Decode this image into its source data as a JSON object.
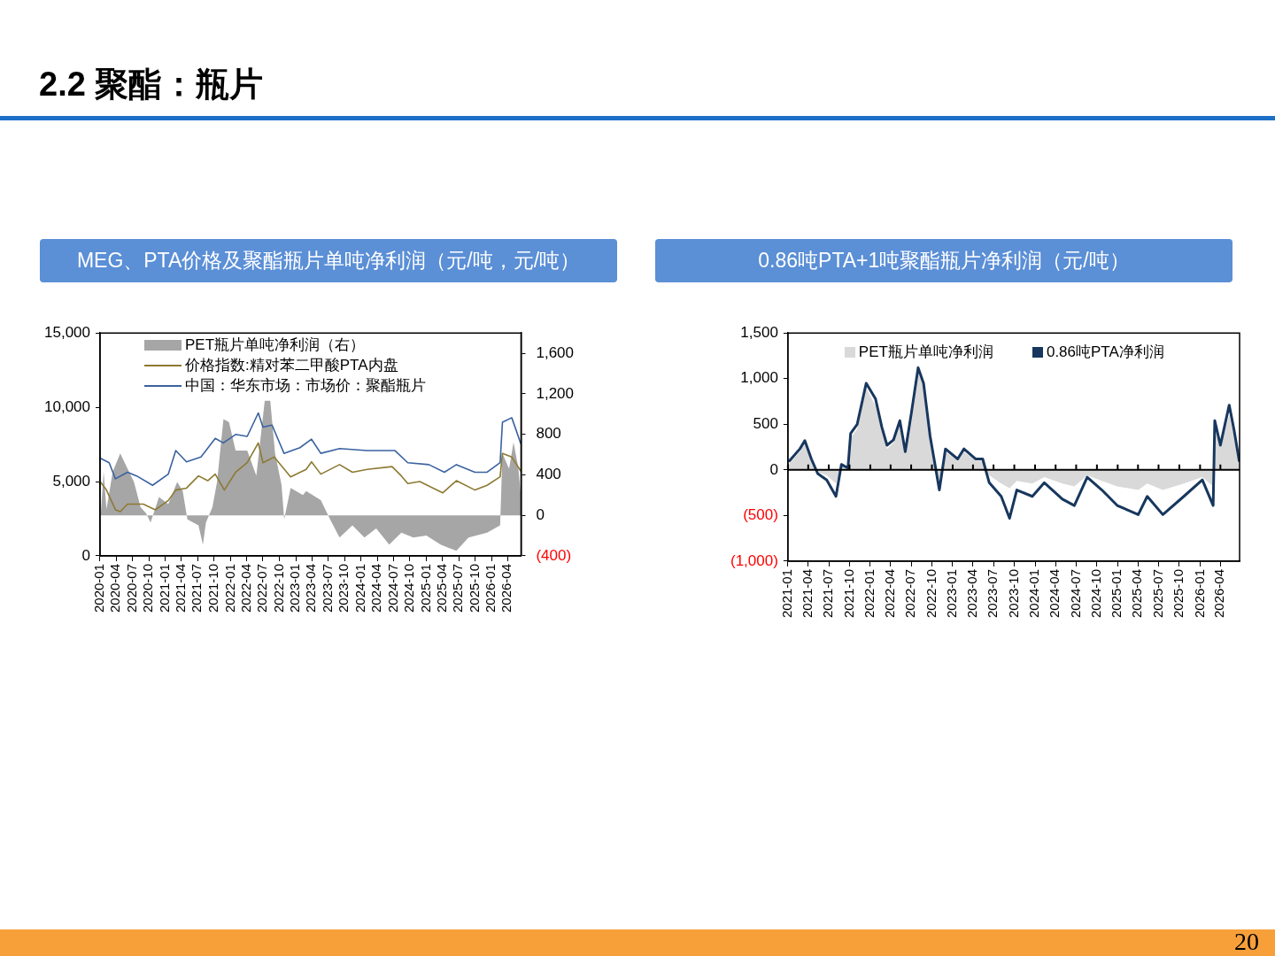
{
  "chart_data": [
    {
      "type": "other",
      "title": "2.2 聚酯：瓶片",
      "annotations": [
        "20"
      ]
    },
    {
      "type": "line",
      "title": "MEG、PTA价格及聚酯瓶片单吨净利润（元/吨，元/吨）",
      "legend": "top left",
      "marker": "none",
      "xlim": [
        "2020-01-01",
        "2026-06-15"
      ],
      "xticks": [
        "2020-01",
        "2020-04",
        "2020-07",
        "2020-10",
        "2021-01",
        "2021-04",
        "2021-07",
        "2021-10",
        "2022-01",
        "2022-04",
        "2022-07",
        "2022-10",
        "2023-01",
        "2023-04",
        "2023-07",
        "2023-10",
        "2024-01",
        "2024-04",
        "2024-07",
        "2024-10",
        "2025-01",
        "2025-04",
        "2025-07",
        "2025-10",
        "2026-01",
        "2026-04"
      ],
      "ylim": [
        0,
        15000
      ],
      "yticks": [
        {
          "value": 0,
          "label": "0"
        },
        {
          "value": 5000,
          "label": "5,000"
        },
        {
          "value": 10000,
          "label": "10,000"
        },
        {
          "value": 15000,
          "label": "15,000"
        }
      ],
      "y2lim": [
        -400,
        1800
      ],
      "y2ticks": [
        {
          "value": -400,
          "label": "(400)"
        },
        {
          "value": 0,
          "label": "0"
        },
        400,
        800,
        {
          "value": 1200,
          "label": "1,200"
        },
        {
          "value": 1600,
          "label": "1,600"
        }
      ],
      "series": [
        {
          "name": "PET瓶片单吨净利润（右）",
          "type": "area",
          "axis": "y2",
          "color": "#a6a6a6",
          "x": [
            "2020-01-01",
            "2020-01-21",
            "2020-02-06",
            "2020-03-12",
            "2020-04-23",
            "2020-06-03",
            "2020-07-09",
            "2020-08-15",
            "2020-09-15",
            "2020-10-10",
            "2020-11-26",
            "2021-01-17",
            "2021-03-08",
            "2021-04-08",
            "2021-05-04",
            "2021-07-05",
            "2021-07-30",
            "2021-08-16",
            "2021-09-21",
            "2021-10-17",
            "2021-11-22",
            "2021-12-23",
            "2022-01-29",
            "2022-04-04",
            "2022-05-25",
            "2022-07-11",
            "2022-08-11",
            "2022-09-07",
            "2022-10-13",
            "2022-10-28",
            "2022-12-03",
            "2023-02-10",
            "2023-02-28",
            "2023-05-21",
            "2023-07-12",
            "2023-09-03",
            "2023-11-14",
            "2024-01-20",
            "2024-03-26",
            "2024-06-07",
            "2024-08-14",
            "2024-10-20",
            "2025-01-01",
            "2025-03-22",
            "2025-06-18",
            "2025-08-25",
            "2025-12-07",
            "2026-02-18",
            "2026-03-03",
            "2026-04-09",
            "2026-05-04",
            "2026-05-30",
            "2026-06-14"
          ],
          "values": [
            -100,
            430,
            60,
            430,
            610,
            460,
            330,
            80,
            20,
            -70,
            180,
            110,
            330,
            240,
            -40,
            -100,
            -290,
            -70,
            80,
            330,
            950,
            920,
            640,
            640,
            390,
            1130,
            1130,
            610,
            300,
            -40,
            270,
            200,
            240,
            150,
            -40,
            -220,
            -100,
            -220,
            -130,
            -290,
            -170,
            -220,
            -200,
            -290,
            -350,
            -220,
            -170,
            -100,
            610,
            460,
            720,
            480,
            200
          ]
        },
        {
          "name": "价格指数:精对苯二甲酸PTA内盘",
          "type": "line",
          "color": "#8c7a32",
          "x": [
            "2020-01-01",
            "2020-02-06",
            "2020-03-27",
            "2020-04-23",
            "2020-06-03",
            "2020-08-30",
            "2020-11-06",
            "2021-01-17",
            "2021-02-28",
            "2021-04-29",
            "2021-07-05",
            "2021-08-26",
            "2021-10-07",
            "2021-11-27",
            "2022-01-29",
            "2022-04-04",
            "2022-06-05",
            "2022-07-01",
            "2022-09-02",
            "2022-12-03",
            "2023-02-28",
            "2023-03-30",
            "2023-05-21",
            "2023-09-03",
            "2023-11-14",
            "2024-02-05",
            "2024-06-23",
            "2024-08-14",
            "2024-09-19",
            "2024-11-25",
            "2025-04-02",
            "2025-06-18",
            "2025-09-30",
            "2025-12-07",
            "2026-02-18",
            "2026-03-03",
            "2026-04-24",
            "2026-06-14"
          ],
          "values": [
            5000,
            4430,
            3100,
            2980,
            3480,
            3480,
            3100,
            3730,
            4430,
            4560,
            5380,
            5060,
            5500,
            4430,
            5630,
            6270,
            7600,
            6270,
            6650,
            5320,
            5820,
            6330,
            5500,
            6140,
            5630,
            5820,
            6010,
            5380,
            4870,
            5000,
            4240,
            5060,
            4430,
            4750,
            5320,
            6900,
            6650,
            5700
          ]
        },
        {
          "name": "中国：华东市场：市场价：聚酯瓶片",
          "type": "line",
          "color": "#3a62a0",
          "x": [
            "2020-01-01",
            "2020-02-21",
            "2020-03-27",
            "2020-06-03",
            "2020-07-24",
            "2020-10-21",
            "2021-01-17",
            "2021-02-28",
            "2021-04-29",
            "2021-07-19",
            "2021-10-07",
            "2021-11-21",
            "2022-01-29",
            "2022-04-04",
            "2022-06-05",
            "2022-07-01",
            "2022-08-21",
            "2022-10-27",
            "2023-01-24",
            "2023-03-30",
            "2023-05-21",
            "2023-09-03",
            "2024-02-05",
            "2024-07-08",
            "2024-09-19",
            "2025-01-15",
            "2025-04-12",
            "2025-06-18",
            "2025-09-30",
            "2025-12-07",
            "2026-02-18",
            "2026-03-03",
            "2026-04-24",
            "2026-05-18",
            "2026-06-14"
          ],
          "values": [
            6580,
            6270,
            5190,
            5630,
            5380,
            4750,
            5500,
            7090,
            6330,
            6650,
            7910,
            7600,
            8170,
            8040,
            9620,
            8670,
            8800,
            6900,
            7280,
            7850,
            6900,
            7220,
            7090,
            7090,
            6270,
            6140,
            5630,
            6140,
            5630,
            5630,
            6270,
            8990,
            9300,
            8480,
            7530
          ]
        }
      ]
    },
    {
      "type": "line",
      "title": "0.86吨PTA+1吨聚酯瓶片净利润（元/吨）",
      "legend": "top",
      "marker": "none",
      "xlim": [
        "2021-01-01",
        "2026-06-25"
      ],
      "xticks": [
        "2021-01",
        "2021-04",
        "2021-07",
        "2021-10",
        "2022-01",
        "2022-04",
        "2022-07",
        "2022-10",
        "2023-01",
        "2023-04",
        "2023-07",
        "2023-10",
        "2024-01",
        "2024-04",
        "2024-07",
        "2024-10",
        "2025-01",
        "2025-04",
        "2025-07",
        "2025-10",
        "2026-01",
        "2026-04"
      ],
      "ylim": [
        -1000,
        1500
      ],
      "yticks": [
        {
          "value": -1000,
          "label": "(1,000)"
        },
        {
          "value": -500,
          "label": "(500)"
        },
        {
          "value": 0,
          "label": "0"
        },
        500,
        {
          "value": 1000,
          "label": "1,000"
        },
        {
          "value": 1500,
          "label": "1,500"
        }
      ],
      "ref_lines": [
        {
          "axis": "y",
          "value": 0,
          "color": "#000000"
        }
      ],
      "x": [
        "2021-01-05",
        "2021-02-23",
        "2021-03-17",
        "2021-04-15",
        "2021-05-13",
        "2021-06-22",
        "2021-08-02",
        "2021-08-26",
        "2021-09-24",
        "2021-10-06",
        "2021-11-04",
        "2021-12-14",
        "2022-01-24",
        "2022-02-21",
        "2022-03-16",
        "2022-04-14",
        "2022-05-12",
        "2022-06-05",
        "2022-07-03",
        "2022-08-01",
        "2022-08-25",
        "2022-09-23",
        "2022-11-03",
        "2022-11-30",
        "2023-01-23",
        "2023-02-20",
        "2023-04-12",
        "2023-05-14",
        "2023-06-12",
        "2023-08-04",
        "2023-09-10",
        "2023-10-12",
        "2023-12-20",
        "2024-02-11",
        "2024-05-01",
        "2024-06-23",
        "2024-08-19",
        "2024-10-23",
        "2024-12-30",
        "2025-04-02",
        "2025-05-12",
        "2025-07-20",
        "2025-10-21",
        "2026-01-11",
        "2026-02-28",
        "2026-03-07",
        "2026-04-01",
        "2026-05-10",
        "2026-06-01",
        "2026-06-24"
      ],
      "series": [
        {
          "name": "PET瓶片单吨净利润",
          "type": "area",
          "color": "#d9d9d9",
          "values": [
            60,
            200,
            280,
            100,
            -20,
            -60,
            -150,
            40,
            10,
            350,
            450,
            900,
            700,
            420,
            230,
            300,
            500,
            180,
            600,
            1100,
            900,
            330,
            -120,
            200,
            100,
            200,
            100,
            100,
            -60,
            -150,
            -200,
            -120,
            -150,
            -80,
            -150,
            -180,
            -60,
            -120,
            -180,
            -220,
            -150,
            -220,
            -150,
            -80,
            -180,
            450,
            250,
            600,
            380,
            80
          ]
        },
        {
          "name": "0.86吨PTA净利润",
          "type": "line",
          "color": "#17375e",
          "values": [
            90,
            230,
            320,
            120,
            -40,
            -110,
            -290,
            60,
            20,
            400,
            500,
            950,
            780,
            470,
            270,
            330,
            540,
            200,
            640,
            1120,
            950,
            370,
            -220,
            230,
            120,
            230,
            120,
            120,
            -140,
            -290,
            -530,
            -220,
            -290,
            -140,
            -320,
            -390,
            -80,
            -220,
            -390,
            -490,
            -290,
            -490,
            -290,
            -110,
            -390,
            540,
            270,
            710,
            430,
            90
          ]
        }
      ]
    }
  ]
}
